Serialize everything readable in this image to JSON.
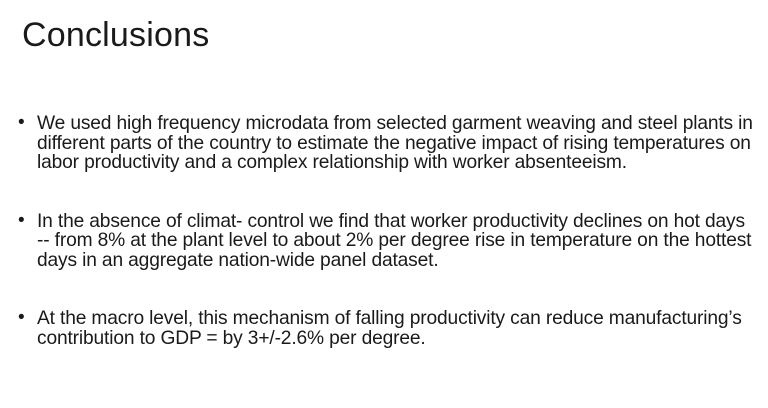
{
  "slide": {
    "title": "Conclusions",
    "bullets": [
      {
        "marker": "•",
        "text": "We used high frequency microdata from selected garment weaving and steel plants in different parts of the country to estimate the negative impact of rising temperatures on labor productivity and a complex relationship with worker absenteeism."
      },
      {
        "marker": "•",
        "text": "In the absence of climat- control we find that worker productivity declines on hot days -- from 8% at the plant level to about 2% per degree rise in temperature on the hottest days in an aggregate nation-wide panel dataset."
      },
      {
        "marker": "•",
        "text": "At the macro level, this mechanism of falling productivity can reduce manufacturing’s contribution to GDP = by 3+/-2.6% per degree."
      }
    ]
  }
}
